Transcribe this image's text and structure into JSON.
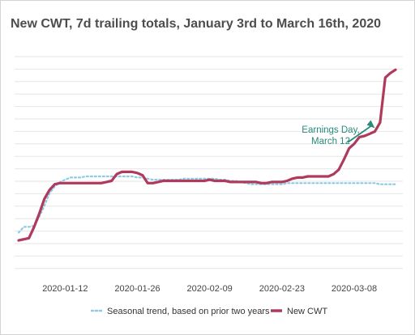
{
  "chart_data": {
    "type": "line",
    "title": "New CWT, 7d trailing totals, January 3rd to March 16th, 2020",
    "xlabel": "",
    "ylabel": "",
    "x_tick_labels": [
      "2020-01-12",
      "2020-01-26",
      "2020-02-09",
      "2020-02-23",
      "2020-03-08"
    ],
    "grid": "horizontal",
    "legend_position": "bottom",
    "annotation": {
      "lines": [
        "Earnings Day,",
        "March 12"
      ],
      "target_day": 69
    },
    "series": [
      {
        "name": "Seasonal trend, based on prior two years",
        "color": "#8ecae6",
        "style": "dotted",
        "values": [
          12,
          17,
          17,
          18,
          26,
          36,
          47,
          53,
          57,
          59,
          61,
          61,
          61,
          62,
          62,
          62,
          62,
          62,
          62,
          62,
          62,
          62,
          62,
          61,
          61,
          60,
          59,
          59,
          59,
          59,
          59,
          59,
          60,
          60,
          60,
          60,
          60,
          60,
          60,
          59,
          59,
          58,
          58,
          57,
          56,
          55,
          55,
          55,
          55,
          55,
          55,
          55,
          56,
          56,
          56,
          56,
          56,
          56,
          56,
          56,
          56,
          56,
          56,
          56,
          56,
          56,
          56,
          56,
          56,
          56,
          55,
          55,
          55,
          55
        ]
      },
      {
        "name": "New CWT",
        "color": "#b03a5b",
        "style": "solid",
        "values": [
          5,
          6,
          7,
          17,
          29,
          42,
          50,
          55,
          56,
          56,
          56,
          56,
          56,
          56,
          56,
          56,
          56,
          57,
          58,
          64,
          66,
          66,
          66,
          65,
          63,
          56,
          56,
          57,
          58,
          58,
          58,
          58,
          58,
          58,
          58,
          58,
          58,
          59,
          58,
          58,
          58,
          57,
          57,
          57,
          57,
          57,
          57,
          56,
          56,
          57,
          57,
          57,
          58,
          60,
          61,
          61,
          62,
          62,
          62,
          62,
          62,
          64,
          68,
          77,
          87,
          91,
          97,
          98,
          100,
          102,
          110,
          150,
          154,
          157
        ]
      }
    ]
  }
}
